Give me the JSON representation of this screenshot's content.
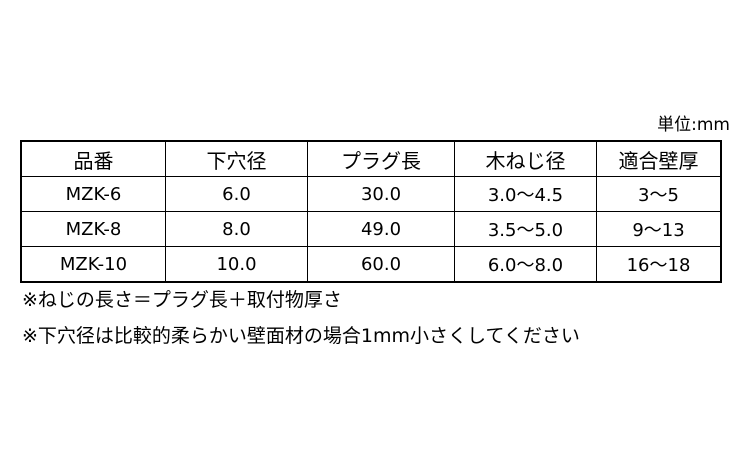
{
  "unit_label": "単位:mm",
  "table": {
    "headers": [
      "品番",
      "下穴径",
      "プラグ長",
      "木ねじ径",
      "適合壁厚"
    ],
    "rows": [
      [
        "MZK-6",
        "6.0",
        "30.0",
        "3.0～4.5",
        "3～5"
      ],
      [
        "MZK-8",
        "8.0",
        "49.0",
        "3.5～5.0",
        "9～13"
      ],
      [
        "MZK-10",
        "10.0",
        "60.0",
        "6.0～8.0",
        "16～18"
      ]
    ]
  },
  "notes": [
    "※ねじの長さ＝プラグ長＋取付物厚さ",
    "※下穴径は比較的柔らかい壁面材の場合1mm小さくしてください"
  ]
}
